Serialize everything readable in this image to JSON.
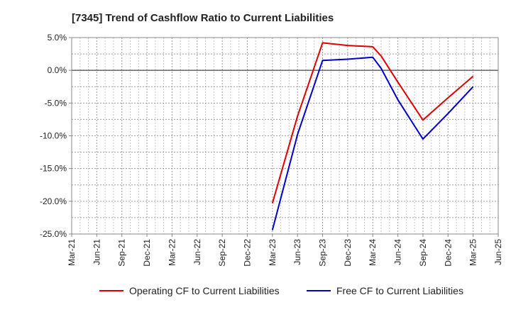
{
  "chart_data": {
    "type": "line",
    "title": "[7345]  Trend of Cashflow Ratio to Current Liabilities",
    "xlabel": "",
    "ylabel": "",
    "x_ticks": [
      "Mar-21",
      "Jun-21",
      "Sep-21",
      "Dec-21",
      "Mar-22",
      "Jun-22",
      "Sep-22",
      "Dec-22",
      "Mar-23",
      "Jun-23",
      "Sep-23",
      "Dec-23",
      "Mar-24",
      "Jun-24",
      "Sep-24",
      "Dec-24",
      "Mar-25",
      "Jun-25"
    ],
    "y_ticks": [
      "5.0%",
      "0.0%",
      "-5.0%",
      "-10.0%",
      "-15.0%",
      "-20.0%",
      "-25.0%"
    ],
    "ylim": [
      -25,
      5
    ],
    "y_unit": "%",
    "grid": true,
    "legend_position": "bottom",
    "series": [
      {
        "name": "Operating CF to Current Liabilities",
        "color": "#e00000",
        "points": [
          {
            "x": "Mar-23",
            "y": -20.3
          },
          {
            "x": "Jun-23",
            "y": -7.0
          },
          {
            "x": "Sep-23",
            "y": 4.2
          },
          {
            "x": "Dec-23",
            "y": 3.8
          },
          {
            "x": "Mar-24",
            "y": 3.6
          },
          {
            "x": "Apr-24",
            "y": 2.2
          },
          {
            "x": "Jun-24",
            "y": -1.8
          },
          {
            "x": "Sep-24",
            "y": -7.6
          },
          {
            "x": "Dec-24",
            "y": -4.2
          },
          {
            "x": "Mar-25",
            "y": -0.9
          }
        ]
      },
      {
        "name": "Free CF to Current Liabilities",
        "color": "#0000cc",
        "points": [
          {
            "x": "Mar-23",
            "y": -24.4
          },
          {
            "x": "Jun-23",
            "y": -9.8
          },
          {
            "x": "Sep-23",
            "y": 1.5
          },
          {
            "x": "Dec-23",
            "y": 1.7
          },
          {
            "x": "Mar-24",
            "y": 2.0
          },
          {
            "x": "Apr-24",
            "y": 0.3
          },
          {
            "x": "Jun-24",
            "y": -4.5
          },
          {
            "x": "Sep-24",
            "y": -10.5
          },
          {
            "x": "Dec-24",
            "y": -6.6
          },
          {
            "x": "Mar-25",
            "y": -2.5
          }
        ]
      }
    ]
  }
}
